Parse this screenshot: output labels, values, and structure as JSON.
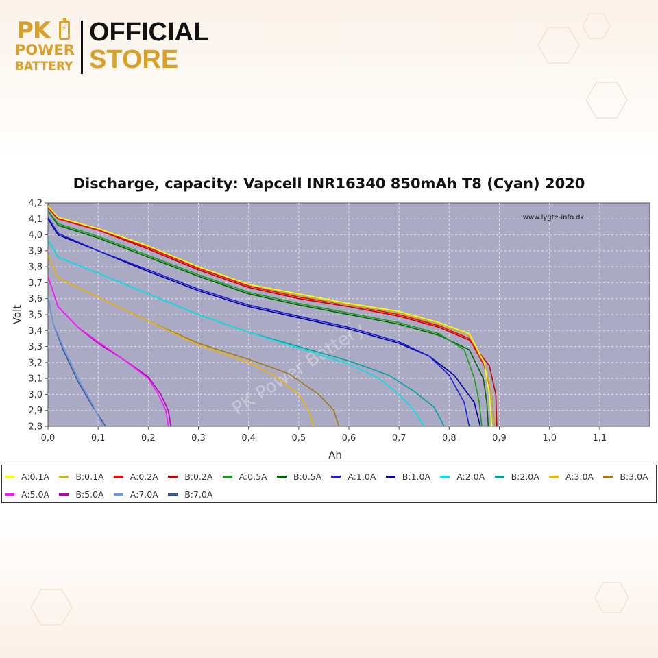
{
  "brand": {
    "logo_pk": "PK",
    "logo_power": "POWER",
    "logo_battery": "BATTERY",
    "official": "OFFICIAL",
    "store": "STORE",
    "gold": "#d8a12a"
  },
  "watermark_site": "www.lygte-info.dk",
  "watermark_brand": "PK Power Battery",
  "chart_data": {
    "type": "line",
    "title": "Discharge, capacity: Vapcell INR16340 850mAh T8 (Cyan) 2020",
    "xlabel": "Ah",
    "ylabel": "Volt",
    "xlim": [
      0,
      1.2
    ],
    "ylim": [
      2.8,
      4.2
    ],
    "x_ticks": [
      "0,0",
      "0,1",
      "0,2",
      "0,3",
      "0,4",
      "0,5",
      "0,6",
      "0,7",
      "0,8",
      "0,9",
      "1,0",
      "1,1"
    ],
    "y_ticks": [
      "2,8",
      "2,9",
      "3,0",
      "3,1",
      "3,2",
      "3,3",
      "3,4",
      "3,5",
      "3,6",
      "3,7",
      "3,8",
      "3,9",
      "4,0",
      "4,1",
      "4,2"
    ],
    "grid": true,
    "plot_background": "#aaaac4",
    "legend_position": "bottom",
    "series": [
      {
        "name": "A:0.1A",
        "color": "#ffff00",
        "points": [
          [
            0,
            4.18
          ],
          [
            0.02,
            4.11
          ],
          [
            0.1,
            4.04
          ],
          [
            0.2,
            3.93
          ],
          [
            0.3,
            3.8
          ],
          [
            0.4,
            3.69
          ],
          [
            0.5,
            3.63
          ],
          [
            0.6,
            3.57
          ],
          [
            0.7,
            3.52
          ],
          [
            0.78,
            3.45
          ],
          [
            0.84,
            3.38
          ],
          [
            0.87,
            3.2
          ],
          [
            0.88,
            3.0
          ],
          [
            0.885,
            2.8
          ]
        ]
      },
      {
        "name": "B:0.1A",
        "color": "#c8b428",
        "points": [
          [
            0,
            4.18
          ],
          [
            0.02,
            4.11
          ],
          [
            0.1,
            4.04
          ],
          [
            0.2,
            3.93
          ],
          [
            0.3,
            3.8
          ],
          [
            0.4,
            3.69
          ],
          [
            0.5,
            3.62
          ],
          [
            0.6,
            3.56
          ],
          [
            0.7,
            3.51
          ],
          [
            0.78,
            3.44
          ],
          [
            0.84,
            3.37
          ],
          [
            0.87,
            3.2
          ],
          [
            0.885,
            3.0
          ],
          [
            0.89,
            2.8
          ]
        ]
      },
      {
        "name": "A:0.2A",
        "color": "#ff0000",
        "points": [
          [
            0,
            4.17
          ],
          [
            0.02,
            4.1
          ],
          [
            0.1,
            4.03
          ],
          [
            0.2,
            3.92
          ],
          [
            0.3,
            3.79
          ],
          [
            0.4,
            3.68
          ],
          [
            0.5,
            3.61
          ],
          [
            0.6,
            3.56
          ],
          [
            0.7,
            3.5
          ],
          [
            0.78,
            3.43
          ],
          [
            0.84,
            3.35
          ],
          [
            0.87,
            3.18
          ],
          [
            0.885,
            3.0
          ],
          [
            0.89,
            2.8
          ]
        ]
      },
      {
        "name": "B:0.2A",
        "color": "#c80000",
        "points": [
          [
            0,
            4.17
          ],
          [
            0.02,
            4.1
          ],
          [
            0.1,
            4.03
          ],
          [
            0.2,
            3.91
          ],
          [
            0.3,
            3.78
          ],
          [
            0.4,
            3.67
          ],
          [
            0.5,
            3.6
          ],
          [
            0.6,
            3.55
          ],
          [
            0.7,
            3.49
          ],
          [
            0.78,
            3.42
          ],
          [
            0.84,
            3.34
          ],
          [
            0.88,
            3.18
          ],
          [
            0.893,
            3.0
          ],
          [
            0.895,
            2.8
          ]
        ]
      },
      {
        "name": "A:0.5A",
        "color": "#1a9e1a",
        "points": [
          [
            0,
            4.15
          ],
          [
            0.02,
            4.07
          ],
          [
            0.1,
            3.99
          ],
          [
            0.2,
            3.87
          ],
          [
            0.3,
            3.75
          ],
          [
            0.4,
            3.64
          ],
          [
            0.5,
            3.57
          ],
          [
            0.6,
            3.51
          ],
          [
            0.7,
            3.45
          ],
          [
            0.78,
            3.38
          ],
          [
            0.83,
            3.28
          ],
          [
            0.85,
            3.1
          ],
          [
            0.86,
            2.95
          ],
          [
            0.865,
            2.8
          ]
        ]
      },
      {
        "name": "B:0.5A",
        "color": "#006400",
        "points": [
          [
            0,
            4.15
          ],
          [
            0.02,
            4.06
          ],
          [
            0.1,
            3.98
          ],
          [
            0.2,
            3.86
          ],
          [
            0.3,
            3.74
          ],
          [
            0.4,
            3.63
          ],
          [
            0.5,
            3.56
          ],
          [
            0.6,
            3.5
          ],
          [
            0.7,
            3.44
          ],
          [
            0.78,
            3.37
          ],
          [
            0.84,
            3.28
          ],
          [
            0.868,
            3.1
          ],
          [
            0.875,
            2.95
          ],
          [
            0.878,
            2.8
          ]
        ]
      },
      {
        "name": "A:1.0A",
        "color": "#1c1cd8",
        "points": [
          [
            0,
            4.11
          ],
          [
            0.02,
            4.01
          ],
          [
            0.1,
            3.9
          ],
          [
            0.2,
            3.78
          ],
          [
            0.3,
            3.66
          ],
          [
            0.4,
            3.56
          ],
          [
            0.5,
            3.49
          ],
          [
            0.6,
            3.42
          ],
          [
            0.7,
            3.33
          ],
          [
            0.76,
            3.24
          ],
          [
            0.8,
            3.12
          ],
          [
            0.83,
            2.95
          ],
          [
            0.84,
            2.8
          ]
        ]
      },
      {
        "name": "B:1.0A",
        "color": "#000096",
        "points": [
          [
            0,
            4.1
          ],
          [
            0.02,
            4.0
          ],
          [
            0.1,
            3.9
          ],
          [
            0.2,
            3.77
          ],
          [
            0.3,
            3.65
          ],
          [
            0.4,
            3.55
          ],
          [
            0.5,
            3.48
          ],
          [
            0.6,
            3.41
          ],
          [
            0.7,
            3.32
          ],
          [
            0.76,
            3.24
          ],
          [
            0.81,
            3.12
          ],
          [
            0.85,
            2.95
          ],
          [
            0.862,
            2.8
          ]
        ]
      },
      {
        "name": "A:2.0A",
        "color": "#00e4e4",
        "points": [
          [
            0,
            3.97
          ],
          [
            0.02,
            3.86
          ],
          [
            0.1,
            3.76
          ],
          [
            0.2,
            3.63
          ],
          [
            0.3,
            3.5
          ],
          [
            0.4,
            3.39
          ],
          [
            0.5,
            3.29
          ],
          [
            0.6,
            3.19
          ],
          [
            0.66,
            3.1
          ],
          [
            0.7,
            3.0
          ],
          [
            0.73,
            2.9
          ],
          [
            0.75,
            2.8
          ]
        ]
      },
      {
        "name": "B:2.0A",
        "color": "#00a0a0",
        "points": [
          [
            0,
            3.97
          ],
          [
            0.02,
            3.86
          ],
          [
            0.1,
            3.76
          ],
          [
            0.2,
            3.63
          ],
          [
            0.3,
            3.5
          ],
          [
            0.4,
            3.39
          ],
          [
            0.5,
            3.3
          ],
          [
            0.6,
            3.21
          ],
          [
            0.68,
            3.12
          ],
          [
            0.73,
            3.02
          ],
          [
            0.77,
            2.92
          ],
          [
            0.79,
            2.8
          ]
        ]
      },
      {
        "name": "A:3.0A",
        "color": "#f0b400",
        "points": [
          [
            0,
            3.87
          ],
          [
            0.02,
            3.73
          ],
          [
            0.1,
            3.61
          ],
          [
            0.2,
            3.46
          ],
          [
            0.3,
            3.31
          ],
          [
            0.4,
            3.2
          ],
          [
            0.45,
            3.12
          ],
          [
            0.5,
            3.0
          ],
          [
            0.52,
            2.9
          ],
          [
            0.53,
            2.8
          ]
        ]
      },
      {
        "name": "B:3.0A",
        "color": "#a07814",
        "points": [
          [
            0,
            3.87
          ],
          [
            0.02,
            3.73
          ],
          [
            0.1,
            3.61
          ],
          [
            0.2,
            3.46
          ],
          [
            0.3,
            3.32
          ],
          [
            0.4,
            3.22
          ],
          [
            0.48,
            3.13
          ],
          [
            0.54,
            3.0
          ],
          [
            0.57,
            2.9
          ],
          [
            0.58,
            2.8
          ]
        ]
      },
      {
        "name": "A:5.0A",
        "color": "#ff14ff",
        "points": [
          [
            0,
            3.74
          ],
          [
            0.02,
            3.55
          ],
          [
            0.06,
            3.42
          ],
          [
            0.1,
            3.33
          ],
          [
            0.15,
            3.22
          ],
          [
            0.2,
            3.1
          ],
          [
            0.22,
            3.0
          ],
          [
            0.235,
            2.9
          ],
          [
            0.24,
            2.8
          ]
        ]
      },
      {
        "name": "B:5.0A",
        "color": "#b400b4",
        "points": [
          [
            0,
            3.74
          ],
          [
            0.02,
            3.55
          ],
          [
            0.06,
            3.42
          ],
          [
            0.1,
            3.32
          ],
          [
            0.15,
            3.22
          ],
          [
            0.2,
            3.11
          ],
          [
            0.225,
            3.0
          ],
          [
            0.24,
            2.9
          ],
          [
            0.245,
            2.8
          ]
        ]
      },
      {
        "name": "A:7.0A",
        "color": "#6e96dc",
        "points": [
          [
            0,
            3.62
          ],
          [
            0.01,
            3.45
          ],
          [
            0.03,
            3.3
          ],
          [
            0.06,
            3.1
          ],
          [
            0.09,
            2.93
          ],
          [
            0.11,
            2.8
          ]
        ]
      },
      {
        "name": "B:7.0A",
        "color": "#3c5a9a",
        "points": [
          [
            0,
            3.62
          ],
          [
            0.01,
            3.45
          ],
          [
            0.03,
            3.28
          ],
          [
            0.06,
            3.08
          ],
          [
            0.09,
            2.92
          ],
          [
            0.115,
            2.8
          ]
        ]
      }
    ]
  }
}
